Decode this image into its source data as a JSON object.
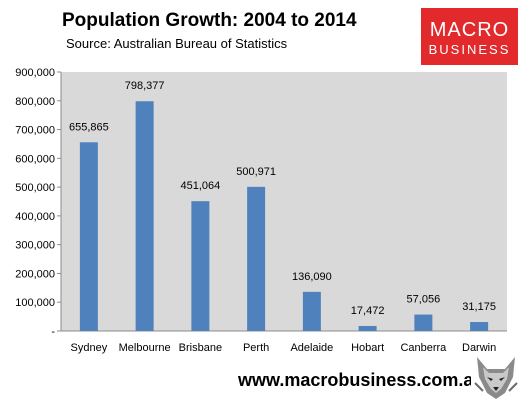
{
  "title": "Population Growth: 2004 to 2014",
  "subtitle": "Source: Australian Bureau of Statistics",
  "logo": {
    "line1": "MACRO",
    "line2": "BUSINESS",
    "color": "#e2292b"
  },
  "footer": {
    "url": "www.macrobusiness.com.au",
    "icon": "wolf-logo-icon"
  },
  "chart_data": {
    "type": "bar",
    "title": "Population Growth: 2004 to 2014",
    "subtitle": "Source: Australian Bureau of Statistics",
    "xlabel": "",
    "ylabel": "",
    "categories": [
      "Sydney",
      "Melbourne",
      "Brisbane",
      "Perth",
      "Adelaide",
      "Hobart",
      "Canberra",
      "Darwin"
    ],
    "values": [
      655865,
      798377,
      451064,
      500971,
      136090,
      17472,
      57056,
      31175
    ],
    "value_labels": [
      "655,865",
      "798,377",
      "451,064",
      "500,971",
      "136,090",
      "17,472",
      "57,056",
      "31,175"
    ],
    "ylim": [
      0,
      900000
    ],
    "yticks": [
      0,
      100000,
      200000,
      300000,
      400000,
      500000,
      600000,
      700000,
      800000,
      900000
    ],
    "ytick_labels": [
      "-",
      "100,000",
      "200,000",
      "300,000",
      "400,000",
      "500,000",
      "600,000",
      "700,000",
      "800,000",
      "900,000"
    ],
    "bar_color": "#4f81bd",
    "plot_background": "#d9d9d9",
    "grid": false,
    "legend": "none"
  }
}
